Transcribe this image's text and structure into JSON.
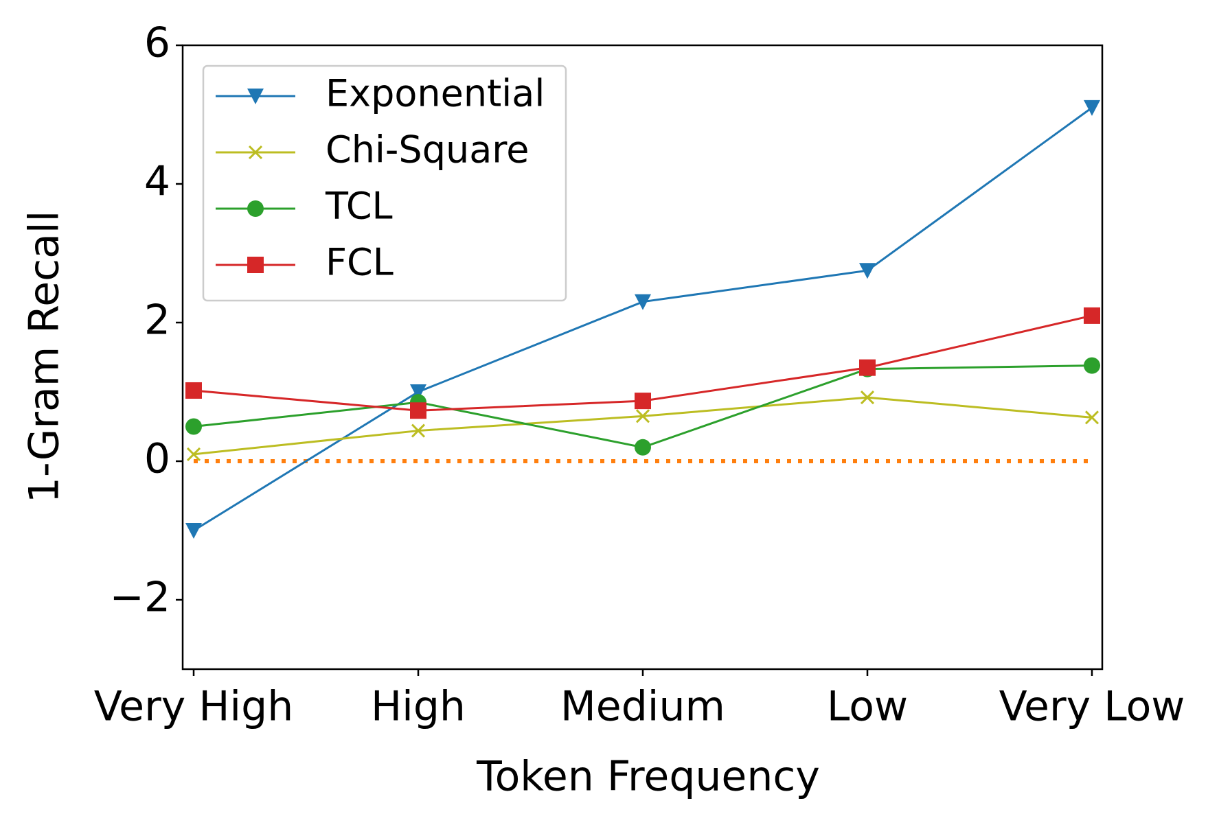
{
  "chart_data": {
    "type": "line",
    "xlabel": "Token Frequency",
    "ylabel": "1-Gram Recall",
    "categories": [
      "Very High",
      "High",
      "Medium",
      "Low",
      "Very Low"
    ],
    "series": [
      {
        "name": "Exponential",
        "color": "#1f77b4",
        "marker": "triangle-down",
        "values": [
          -1.0,
          1.0,
          2.3,
          2.75,
          5.1
        ]
      },
      {
        "name": "Chi-Square",
        "color": "#bcbd22",
        "marker": "x",
        "values": [
          0.1,
          0.44,
          0.65,
          0.92,
          0.63
        ]
      },
      {
        "name": "TCL",
        "color": "#2ca02c",
        "marker": "circle",
        "values": [
          0.5,
          0.85,
          0.2,
          1.33,
          1.38
        ]
      },
      {
        "name": "FCL",
        "color": "#d62728",
        "marker": "square",
        "values": [
          1.02,
          0.73,
          0.87,
          1.35,
          2.1
        ]
      }
    ],
    "baseline": {
      "value": 0,
      "color": "#ff7f0e",
      "style": "dotted"
    },
    "ylim": [
      -3,
      6
    ],
    "yticks": [
      {
        "value": -2,
        "label": "−2"
      },
      0,
      2,
      4,
      6
    ],
    "legend": "upper left"
  }
}
